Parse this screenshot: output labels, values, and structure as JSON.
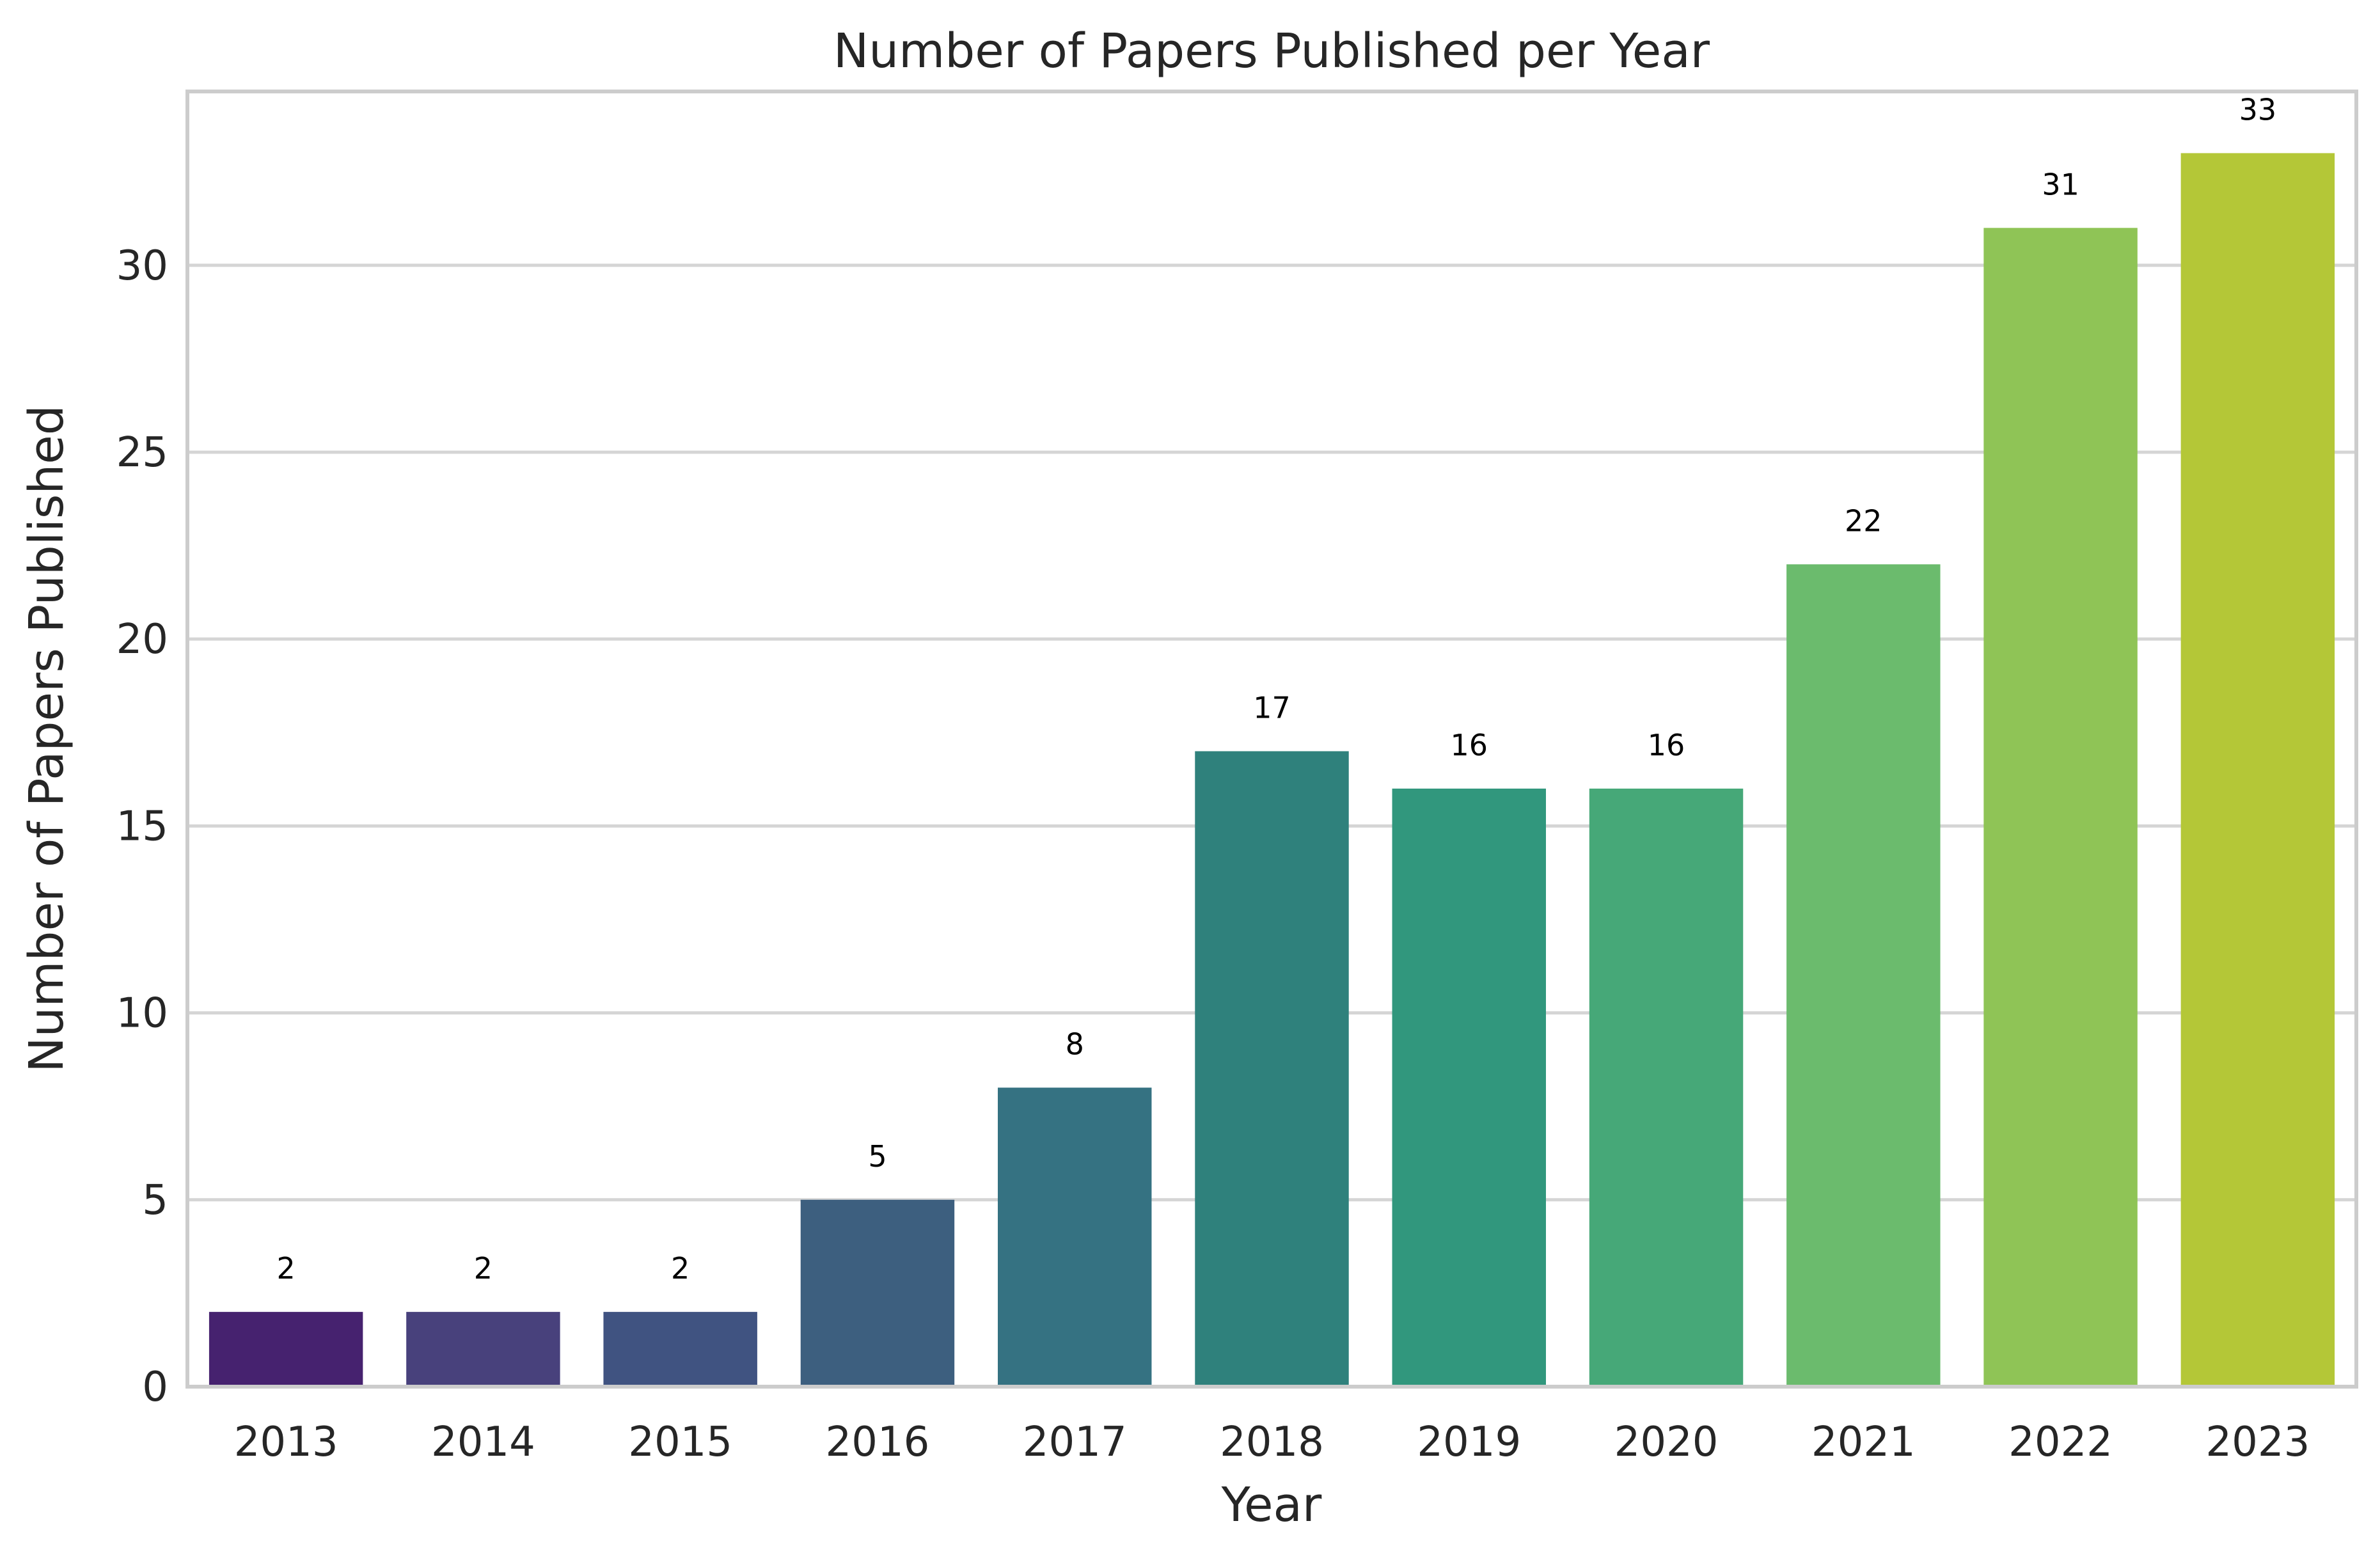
{
  "chart_data": {
    "type": "bar",
    "title": "Number of Papers Published per Year",
    "xlabel": "Year",
    "ylabel": "Number of Papers Published",
    "categories": [
      "2013",
      "2014",
      "2015",
      "2016",
      "2017",
      "2018",
      "2019",
      "2020",
      "2021",
      "2022",
      "2023"
    ],
    "values": [
      2,
      2,
      2,
      5,
      8,
      17,
      16,
      16,
      22,
      31,
      33
    ],
    "data_labels": [
      "2",
      "2",
      "2",
      "5",
      "8",
      "17",
      "16",
      "16",
      "22",
      "31",
      "33"
    ],
    "ylim": [
      0,
      34.65
    ],
    "yticks": [
      0,
      5,
      10,
      15,
      20,
      25,
      30
    ],
    "ytick_labels": [
      "0",
      "5",
      "10",
      "15",
      "20",
      "25",
      "30"
    ],
    "grid": "horizontal",
    "legend": "none",
    "colors": [
      "#482173",
      "#433e85",
      "#38588c",
      "#2d708e",
      "#25858e",
      "#1e9b8a",
      "#2ab07f",
      "#52c569",
      "#86d549",
      "#c2df23",
      "#fde725"
    ],
    "bar_colors": [
      "#46226f",
      "#48417c",
      "#405381",
      "#3d5f7f",
      "#357282",
      "#2f817c",
      "#31977d",
      "#46a878",
      "#6bbb6d",
      "#8fc456",
      "#b4c737"
    ],
    "grid_color": "#d5d5d5",
    "frame_color": "#cccccc"
  }
}
